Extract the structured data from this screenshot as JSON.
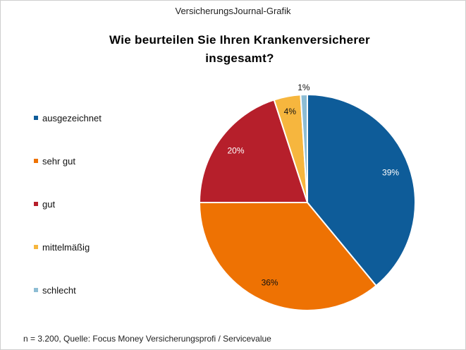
{
  "header": {
    "brand": "VersicherungsJournal-Grafik"
  },
  "chart_data": {
    "type": "pie",
    "title": "Wie beurteilen Sie Ihren Krankenversicherer insgesamt?",
    "title_lines": [
      "Wie beurteilen Sie Ihren Krankenversicherer",
      "insgesamt?"
    ],
    "legend_position": "left",
    "categories": [
      "ausgezeichnet",
      "sehr gut",
      "gut",
      "mittelmäßig",
      "schlecht"
    ],
    "values": [
      39,
      36,
      20,
      4,
      1
    ],
    "labels": [
      "39%",
      "36%",
      "20%",
      "4%",
      "1%"
    ],
    "colors": [
      "#0E5C99",
      "#EE7203",
      "#B61F2B",
      "#F6B63E",
      "#8DBDD4"
    ],
    "unit": "%"
  },
  "footer": {
    "source": "n = 3.200, Quelle: Focus Money Versicherungsprofi  / Servicevalue"
  }
}
